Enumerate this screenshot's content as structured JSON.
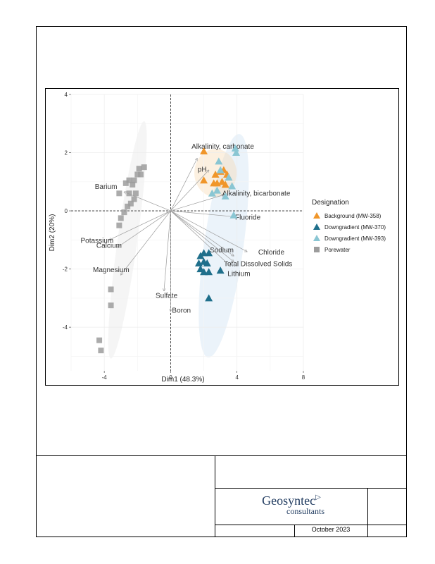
{
  "titleblock": {
    "company": "Geosyntec",
    "company_sub": "consultants",
    "date": "October 2023"
  },
  "chart_data": {
    "type": "scatter",
    "xlabel": "Dim1 (48.3%)",
    "ylabel": "Dim2 (20%)",
    "xlim": [
      -6.0,
      8.0
    ],
    "ylim": [
      -5.5,
      4.0
    ],
    "x_ticks": [
      -4,
      0,
      4,
      8
    ],
    "y_ticks": [
      -4,
      -2,
      0,
      2,
      4
    ],
    "x_tick_labels": [
      "-4",
      "0",
      "4",
      "8"
    ],
    "y_tick_labels": [
      "-4",
      "-2",
      "0",
      "2",
      "4"
    ],
    "grid": true,
    "legend_position": "right",
    "legend_title": "Designation",
    "series": [
      {
        "name": "Background (MW-358)",
        "marker": "triangle",
        "color": "#f0962a",
        "points": [
          [
            2.0,
            2.05
          ],
          [
            2.0,
            1.05
          ],
          [
            2.7,
            1.25
          ],
          [
            2.8,
            0.95
          ],
          [
            2.6,
            0.95
          ],
          [
            3.0,
            1.35
          ],
          [
            3.1,
            1.0
          ],
          [
            3.3,
            0.9
          ],
          [
            3.2,
            1.4
          ],
          [
            3.4,
            1.25
          ]
        ]
      },
      {
        "name": "Downgradient (MW-370)",
        "marker": "triangle",
        "color": "#1f6f8b",
        "points": [
          [
            1.8,
            -1.55
          ],
          [
            2.0,
            -1.45
          ],
          [
            2.3,
            -1.45
          ],
          [
            1.7,
            -1.8
          ],
          [
            2.0,
            -1.75
          ],
          [
            1.8,
            -2.0
          ],
          [
            2.2,
            -1.8
          ],
          [
            2.0,
            -2.1
          ],
          [
            2.3,
            -2.1
          ],
          [
            3.0,
            -2.05
          ],
          [
            2.3,
            -3.0
          ]
        ]
      },
      {
        "name": "Downgradient (MW-393)",
        "marker": "triangle",
        "color": "#8ac6d3",
        "points": [
          [
            3.9,
            2.15
          ],
          [
            3.95,
            2.0
          ],
          [
            2.9,
            1.7
          ],
          [
            3.0,
            1.4
          ],
          [
            3.5,
            1.15
          ],
          [
            3.7,
            0.85
          ],
          [
            3.3,
            0.5
          ],
          [
            2.8,
            0.7
          ],
          [
            2.5,
            0.6
          ],
          [
            3.8,
            -0.15
          ]
        ]
      },
      {
        "name": "Porewater",
        "marker": "square",
        "color": "#9c9c9c",
        "points": [
          [
            -1.6,
            1.5
          ],
          [
            -1.9,
            1.45
          ],
          [
            -1.8,
            1.25
          ],
          [
            -2.0,
            1.25
          ],
          [
            -2.2,
            1.05
          ],
          [
            -2.5,
            1.05
          ],
          [
            -2.3,
            0.9
          ],
          [
            -2.7,
            0.95
          ],
          [
            -2.1,
            0.6
          ],
          [
            -2.5,
            0.6
          ],
          [
            -3.1,
            0.6
          ],
          [
            -2.2,
            0.4
          ],
          [
            -2.4,
            0.25
          ],
          [
            -2.6,
            0.15
          ],
          [
            -2.8,
            -0.05
          ],
          [
            -3.0,
            -0.25
          ],
          [
            -3.1,
            -0.5
          ],
          [
            -3.6,
            -2.7
          ],
          [
            -3.6,
            -3.25
          ],
          [
            -4.3,
            -4.45
          ],
          [
            -4.2,
            -4.8
          ]
        ]
      }
    ],
    "vectors": [
      {
        "label": "Alkalinity, carbonate",
        "x": 1.6,
        "y": 1.8
      },
      {
        "label": "pH",
        "x": 2.3,
        "y": 1.4
      },
      {
        "label": "Alkalinity, bicarbonate",
        "x": 3.2,
        "y": 0.55
      },
      {
        "label": "Fluoride",
        "x": 3.8,
        "y": -0.2
      },
      {
        "label": "Barium",
        "x": -2.8,
        "y": 0.65
      },
      {
        "label": "Potassium",
        "x": -3.7,
        "y": -1.0
      },
      {
        "label": "Calcium",
        "x": -3.2,
        "y": -1.25
      },
      {
        "label": "Magnesium",
        "x": -3.0,
        "y": -2.2
      },
      {
        "label": "Sulfate",
        "x": -0.4,
        "y": -2.75
      },
      {
        "label": "Boron",
        "x": 0.0,
        "y": -3.45
      },
      {
        "label": "Sodium",
        "x": 3.8,
        "y": -1.55
      },
      {
        "label": "Chloride",
        "x": 4.6,
        "y": -1.4
      },
      {
        "label": "Total Dissolved Solids",
        "x": 3.8,
        "y": -1.75
      },
      {
        "label": "Lithium",
        "x": 3.6,
        "y": -1.9
      }
    ]
  }
}
